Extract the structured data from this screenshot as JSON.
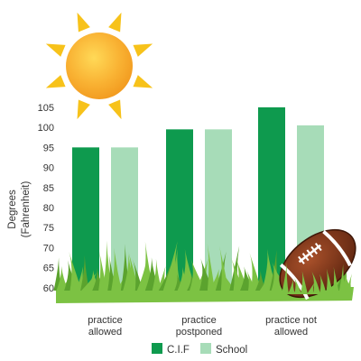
{
  "chart_data": {
    "type": "bar",
    "categories": [
      "practice allowed",
      "practice postponed",
      "practice not allowed"
    ],
    "category_lines": [
      [
        "practice",
        "allowed"
      ],
      [
        "practice",
        "postponed"
      ],
      [
        "practice not",
        "allowed"
      ]
    ],
    "series": [
      {
        "name": "C.I.F",
        "values": [
          95,
          99.5,
          105
        ],
        "color": "#0e9a4e"
      },
      {
        "name": "School",
        "values": [
          95,
          99.5,
          100.5
        ],
        "color": "#a7dcb8"
      }
    ],
    "ylabel_lines": [
      "Degrees",
      "(Fahrenheit)"
    ],
    "yticks": [
      60,
      65,
      70,
      75,
      80,
      85,
      90,
      95,
      100,
      105
    ],
    "ylim": [
      57.5,
      107
    ],
    "legend_position": "bottom-center",
    "grid": false
  },
  "decorations": {
    "sun_icon": "sun-icon",
    "grass_icon": "grass-icon",
    "football_icon": "football-icon",
    "colors": {
      "sun_core": "#f9b233",
      "sun_ray": "#f7c21a",
      "grass": "#7cc243",
      "grass_dark": "#5ba32e",
      "football": "#7a3618"
    }
  }
}
